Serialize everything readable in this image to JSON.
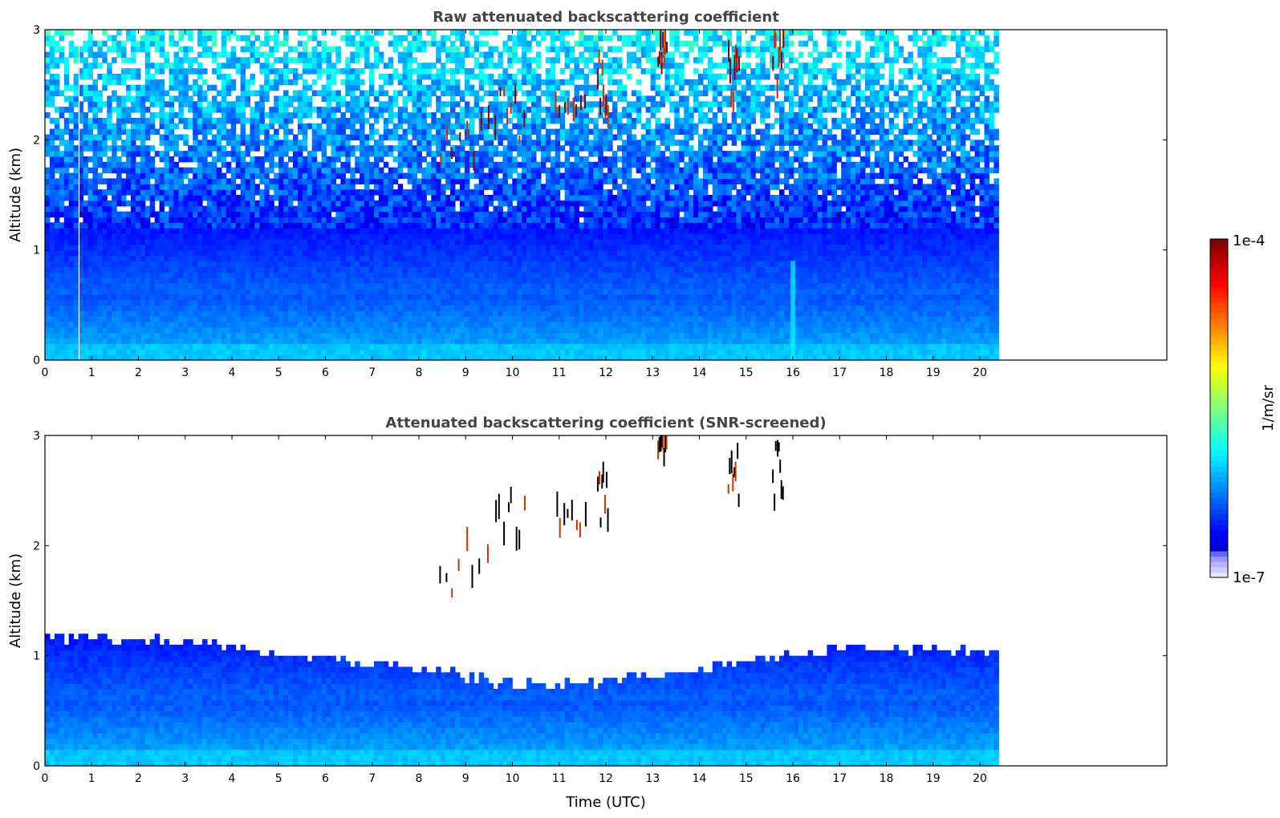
{
  "chart_data": [
    {
      "type": "heatmap",
      "title": "Raw attenuated backscattering coefficient",
      "xlabel": "",
      "ylabel": "Altitude (km)",
      "xlim": [
        0,
        24
      ],
      "ylim": [
        0,
        3
      ],
      "x_ticks": [
        0,
        1,
        2,
        3,
        4,
        5,
        6,
        7,
        8,
        9,
        10,
        11,
        12,
        13,
        14,
        15,
        16,
        17,
        18,
        19,
        20
      ],
      "y_ticks": [
        0,
        1,
        2,
        3
      ],
      "data_time_range_utc": [
        0,
        20.4
      ],
      "features": {
        "boundary_layer_top_km": 1.2,
        "noisy_signal_km": [
          1.2,
          3.0
        ],
        "data_gap_time_utc": 0.72,
        "high_backscatter_column_time_utc": 16.0,
        "cloud_patches": [
          {
            "t0": 8.4,
            "t1": 9.55,
            "z0": 1.55,
            "z1": 2.1
          },
          {
            "t0": 9.6,
            "t1": 10.3,
            "z0": 1.9,
            "z1": 2.4
          },
          {
            "t0": 10.9,
            "t1": 11.6,
            "z0": 2.05,
            "z1": 2.3
          },
          {
            "t0": 11.8,
            "t1": 12.05,
            "z0": 2.1,
            "z1": 2.7
          },
          {
            "t0": 13.1,
            "t1": 13.3,
            "z0": 2.5,
            "z1": 3.0
          },
          {
            "t0": 14.6,
            "t1": 14.85,
            "z0": 2.2,
            "z1": 2.8
          },
          {
            "t0": 15.55,
            "t1": 15.8,
            "z0": 2.3,
            "z1": 3.0
          }
        ]
      }
    },
    {
      "type": "heatmap",
      "title": "Attenuated backscattering coefficient (SNR-screened)",
      "xlabel": "Time (UTC)",
      "ylabel": "Altitude (km)",
      "xlim": [
        0,
        24
      ],
      "ylim": [
        0,
        3
      ],
      "x_ticks": [
        0,
        1,
        2,
        3,
        4,
        5,
        6,
        7,
        8,
        9,
        10,
        11,
        12,
        13,
        14,
        15,
        16,
        17,
        18,
        19,
        20
      ],
      "y_ticks": [
        0,
        1,
        2,
        3
      ],
      "data_time_range_utc": [
        0,
        20.4
      ],
      "features": {
        "screened_layer_top_km": [
          {
            "t": 0,
            "z": 1.15
          },
          {
            "t": 3,
            "z": 1.1
          },
          {
            "t": 6,
            "z": 0.95
          },
          {
            "t": 8.3,
            "z": 0.85
          },
          {
            "t": 10,
            "z": 0.7
          },
          {
            "t": 12,
            "z": 0.75
          },
          {
            "t": 14,
            "z": 0.85
          },
          {
            "t": 16,
            "z": 1.0
          },
          {
            "t": 18,
            "z": 1.05
          },
          {
            "t": 20.4,
            "z": 1.0
          }
        ],
        "cloud_patches": [
          {
            "t0": 8.4,
            "t1": 9.55,
            "z0": 1.5,
            "z1": 2.0
          },
          {
            "t0": 9.6,
            "t1": 10.3,
            "z0": 1.9,
            "z1": 2.4
          },
          {
            "t0": 10.9,
            "t1": 11.6,
            "z0": 2.05,
            "z1": 2.3
          },
          {
            "t0": 11.8,
            "t1": 12.05,
            "z0": 2.1,
            "z1": 2.6
          },
          {
            "t0": 13.1,
            "t1": 13.3,
            "z0": 2.5,
            "z1": 3.0
          },
          {
            "t0": 14.6,
            "t1": 14.85,
            "z0": 2.2,
            "z1": 2.8
          },
          {
            "t0": 15.55,
            "t1": 15.8,
            "z0": 2.3,
            "z1": 2.9
          }
        ]
      }
    }
  ],
  "colorbar": {
    "max_label": "1e-4",
    "min_label": "1e-7",
    "unit_label": "1/m/sr",
    "scale": "log",
    "range": [
      1e-07,
      0.0001
    ],
    "colormap": "jet"
  },
  "colors": {
    "axis": "#000000",
    "title": "#444444",
    "background": "#ffffff"
  }
}
